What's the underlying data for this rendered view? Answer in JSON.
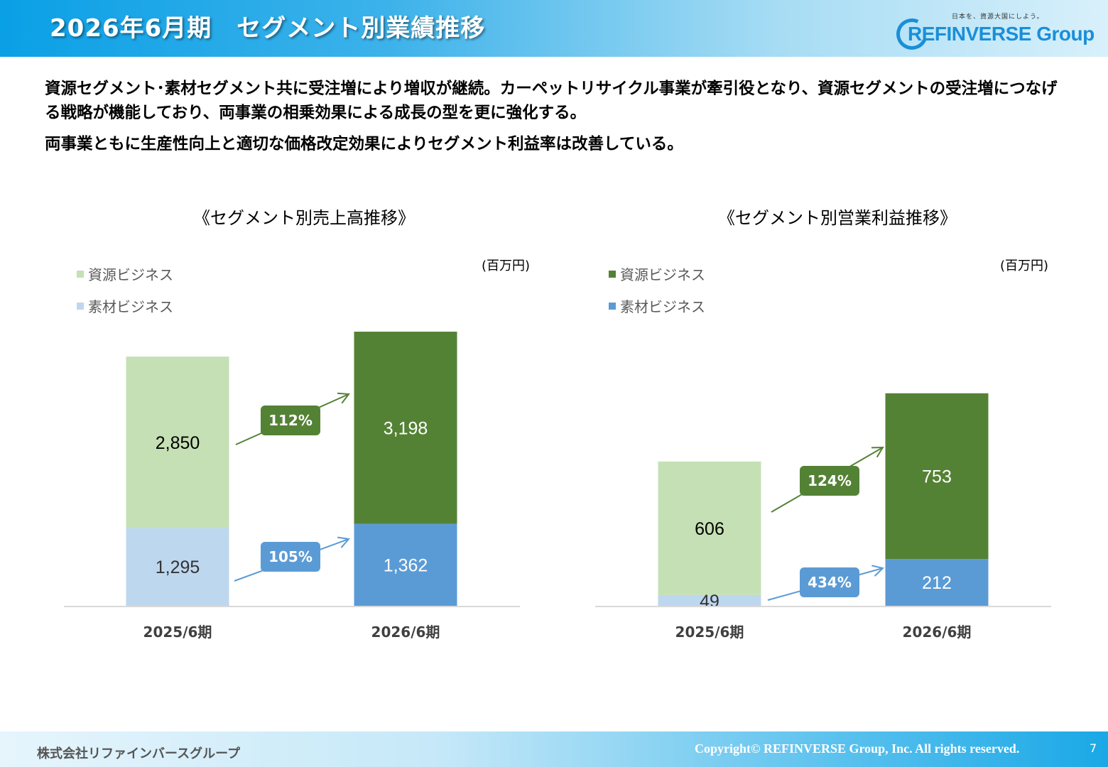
{
  "header": {
    "title": "2026年6月期　セグメント別業績推移",
    "logo_tagline": "日本を、資源大国にしよう。",
    "logo_text": "REFINVERSE Group"
  },
  "summary": {
    "line1": "資源セグメント･素材セグメント共に受注増により増収が継続。カーペットリサイクル事業が牽引役となり、資源セグメントの受注増につなげる戦略が機能しており、両事業の相乗効果による成長の型を更に強化する。",
    "line2": "両事業ともに生産性向上と適切な価格改定効果によりセグメント利益率は改善している。"
  },
  "colors": {
    "resource_light": "#c5e0b4",
    "resource_dark": "#548235",
    "material_light": "#bdd7ee",
    "material_dark": "#5b9bd5"
  },
  "chart_data": [
    {
      "type": "bar",
      "stacked": true,
      "title": "《セグメント別売上高推移》",
      "unit": "(百万円)",
      "categories": [
        "2025/6期",
        "2026/6期"
      ],
      "series": [
        {
          "name": "資源ビジネス",
          "values": [
            2850,
            3198
          ]
        },
        {
          "name": "素材ビジネス",
          "values": [
            1295,
            1362
          ]
        }
      ],
      "growth_labels": {
        "resource": "112%",
        "material": "105%"
      },
      "value_labels": {
        "resource": [
          "2,850",
          "3,198"
        ],
        "material": [
          "1,295",
          "1,362"
        ]
      },
      "ymax": 4950,
      "legend_position": "top-left"
    },
    {
      "type": "bar",
      "stacked": true,
      "title": "《セグメント別営業利益推移》",
      "unit": "(百万円)",
      "categories": [
        "2025/6期",
        "2026/6期"
      ],
      "series": [
        {
          "name": "資源ビジネス",
          "values": [
            606,
            753
          ]
        },
        {
          "name": "素材ビジネス",
          "values": [
            49,
            212
          ]
        }
      ],
      "growth_labels": {
        "resource": "124%",
        "material": "434%"
      },
      "value_labels": {
        "resource": [
          "606",
          "753"
        ],
        "material": [
          "49",
          "212"
        ]
      },
      "ymax": 1190,
      "legend_position": "top-left"
    }
  ],
  "footer": {
    "company": "株式会社リファインバースグループ",
    "copyright": "Copyright© REFINVERSE Group, Inc. All rights reserved.",
    "page": "7"
  }
}
